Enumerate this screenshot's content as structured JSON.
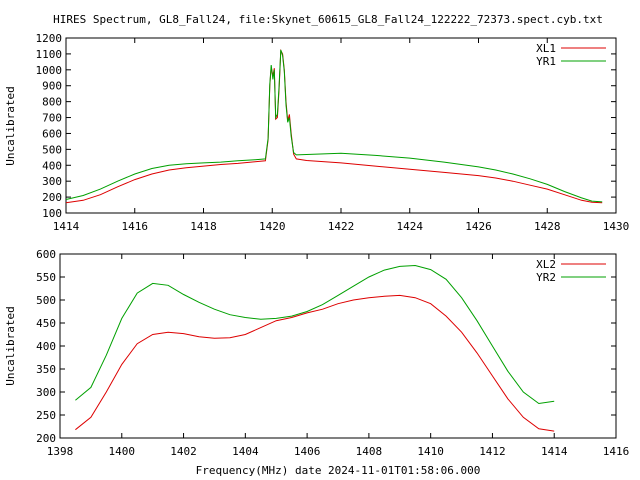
{
  "figure": {
    "title": "HIRES Spectrum, GL8_Fall24, file:Skynet_60615_GL8_Fall24_122222_72373.spect.cyb.txt",
    "xlabel": "Frequency(MHz) date 2024-11-01T01:58:06.000"
  },
  "chart_data": [
    {
      "type": "line",
      "xlabel": "",
      "ylabel": "Uncalibrated",
      "xlim": [
        1414,
        1430
      ],
      "ylim": [
        100,
        1200
      ],
      "xticks": [
        1414,
        1416,
        1418,
        1420,
        1422,
        1424,
        1426,
        1428,
        1430
      ],
      "yticks": [
        100,
        200,
        300,
        400,
        500,
        600,
        700,
        800,
        900,
        1000,
        1100,
        1200
      ],
      "grid": false,
      "legend_position": "top-right",
      "series": [
        {
          "name": "XL1",
          "color": "#dd0000",
          "points": [
            [
              1414.0,
              165
            ],
            [
              1414.5,
              180
            ],
            [
              1415.0,
              215
            ],
            [
              1415.5,
              265
            ],
            [
              1416.0,
              310
            ],
            [
              1416.5,
              345
            ],
            [
              1417.0,
              370
            ],
            [
              1417.5,
              385
            ],
            [
              1418.0,
              395
            ],
            [
              1418.5,
              405
            ],
            [
              1419.0,
              412
            ],
            [
              1419.5,
              422
            ],
            [
              1419.8,
              428
            ],
            [
              1419.88,
              560
            ],
            [
              1419.93,
              900
            ],
            [
              1419.97,
              1020
            ],
            [
              1420.02,
              960
            ],
            [
              1420.06,
              1010
            ],
            [
              1420.1,
              690
            ],
            [
              1420.15,
              700
            ],
            [
              1420.2,
              880
            ],
            [
              1420.25,
              1120
            ],
            [
              1420.3,
              1100
            ],
            [
              1420.35,
              1000
            ],
            [
              1420.4,
              800
            ],
            [
              1420.45,
              680
            ],
            [
              1420.5,
              720
            ],
            [
              1420.55,
              600
            ],
            [
              1420.62,
              470
            ],
            [
              1420.7,
              440
            ],
            [
              1421.0,
              430
            ],
            [
              1422.0,
              415
            ],
            [
              1423.0,
              395
            ],
            [
              1424.0,
              375
            ],
            [
              1425.0,
              355
            ],
            [
              1426.0,
              335
            ],
            [
              1426.5,
              320
            ],
            [
              1427.0,
              300
            ],
            [
              1427.5,
              275
            ],
            [
              1428.0,
              250
            ],
            [
              1428.5,
              215
            ],
            [
              1429.0,
              180
            ],
            [
              1429.3,
              168
            ],
            [
              1429.6,
              165
            ]
          ]
        },
        {
          "name": "YR1",
          "color": "#00a000",
          "points": [
            [
              1414.0,
              185
            ],
            [
              1414.5,
              210
            ],
            [
              1415.0,
              250
            ],
            [
              1415.5,
              300
            ],
            [
              1416.0,
              345
            ],
            [
              1416.5,
              380
            ],
            [
              1417.0,
              400
            ],
            [
              1417.5,
              410
            ],
            [
              1418.0,
              415
            ],
            [
              1418.5,
              420
            ],
            [
              1419.0,
              428
            ],
            [
              1419.5,
              435
            ],
            [
              1419.8,
              440
            ],
            [
              1419.88,
              570
            ],
            [
              1419.93,
              910
            ],
            [
              1419.97,
              1030
            ],
            [
              1420.02,
              940
            ],
            [
              1420.06,
              1000
            ],
            [
              1420.1,
              700
            ],
            [
              1420.15,
              720
            ],
            [
              1420.2,
              900
            ],
            [
              1420.25,
              1125
            ],
            [
              1420.3,
              1090
            ],
            [
              1420.35,
              990
            ],
            [
              1420.4,
              780
            ],
            [
              1420.45,
              670
            ],
            [
              1420.5,
              700
            ],
            [
              1420.55,
              580
            ],
            [
              1420.62,
              480
            ],
            [
              1420.7,
              465
            ],
            [
              1421.0,
              468
            ],
            [
              1422.0,
              475
            ],
            [
              1423.0,
              462
            ],
            [
              1424.0,
              445
            ],
            [
              1425.0,
              420
            ],
            [
              1426.0,
              390
            ],
            [
              1426.5,
              370
            ],
            [
              1427.0,
              345
            ],
            [
              1427.5,
              315
            ],
            [
              1428.0,
              280
            ],
            [
              1428.5,
              235
            ],
            [
              1429.0,
              195
            ],
            [
              1429.3,
              175
            ],
            [
              1429.6,
              170
            ]
          ]
        }
      ]
    },
    {
      "type": "line",
      "xlabel": "Frequency(MHz) date 2024-11-01T01:58:06.000",
      "ylabel": "Uncalibrated",
      "xlim": [
        1398,
        1416
      ],
      "ylim": [
        200,
        600
      ],
      "xticks": [
        1398,
        1400,
        1402,
        1404,
        1406,
        1408,
        1410,
        1412,
        1414,
        1416
      ],
      "yticks": [
        200,
        250,
        300,
        350,
        400,
        450,
        500,
        550,
        600
      ],
      "grid": false,
      "legend_position": "top-right",
      "series": [
        {
          "name": "XL2",
          "color": "#dd0000",
          "points": [
            [
              1398.5,
              218
            ],
            [
              1399.0,
              245
            ],
            [
              1399.5,
              300
            ],
            [
              1400.0,
              360
            ],
            [
              1400.5,
              405
            ],
            [
              1401.0,
              425
            ],
            [
              1401.5,
              430
            ],
            [
              1402.0,
              427
            ],
            [
              1402.5,
              420
            ],
            [
              1403.0,
              417
            ],
            [
              1403.5,
              418
            ],
            [
              1404.0,
              425
            ],
            [
              1404.5,
              440
            ],
            [
              1405.0,
              455
            ],
            [
              1405.5,
              462
            ],
            [
              1406.0,
              472
            ],
            [
              1406.5,
              480
            ],
            [
              1407.0,
              492
            ],
            [
              1407.5,
              500
            ],
            [
              1408.0,
              505
            ],
            [
              1408.5,
              508
            ],
            [
              1409.0,
              510
            ],
            [
              1409.5,
              505
            ],
            [
              1410.0,
              492
            ],
            [
              1410.5,
              465
            ],
            [
              1411.0,
              430
            ],
            [
              1411.5,
              385
            ],
            [
              1412.0,
              335
            ],
            [
              1412.5,
              285
            ],
            [
              1413.0,
              245
            ],
            [
              1413.5,
              220
            ],
            [
              1414.0,
              215
            ]
          ]
        },
        {
          "name": "YR2",
          "color": "#00a000",
          "points": [
            [
              1398.5,
              282
            ],
            [
              1399.0,
              310
            ],
            [
              1399.5,
              380
            ],
            [
              1400.0,
              460
            ],
            [
              1400.5,
              515
            ],
            [
              1401.0,
              536
            ],
            [
              1401.5,
              532
            ],
            [
              1402.0,
              512
            ],
            [
              1402.5,
              495
            ],
            [
              1403.0,
              480
            ],
            [
              1403.5,
              468
            ],
            [
              1404.0,
              462
            ],
            [
              1404.5,
              458
            ],
            [
              1405.0,
              460
            ],
            [
              1405.5,
              465
            ],
            [
              1406.0,
              475
            ],
            [
              1406.5,
              490
            ],
            [
              1407.0,
              510
            ],
            [
              1407.5,
              530
            ],
            [
              1408.0,
              550
            ],
            [
              1408.5,
              565
            ],
            [
              1409.0,
              573
            ],
            [
              1409.5,
              575
            ],
            [
              1410.0,
              566
            ],
            [
              1410.5,
              545
            ],
            [
              1411.0,
              505
            ],
            [
              1411.5,
              455
            ],
            [
              1412.0,
              400
            ],
            [
              1412.5,
              345
            ],
            [
              1413.0,
              300
            ],
            [
              1413.5,
              275
            ],
            [
              1414.0,
              280
            ]
          ]
        }
      ]
    }
  ]
}
